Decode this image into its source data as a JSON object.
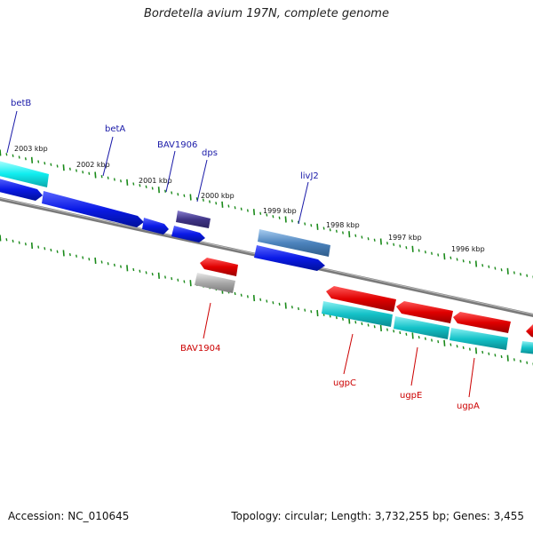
{
  "title": "Bordetella avium 197N, complete genome",
  "footer": {
    "accession": "Accession: NC_010645",
    "summary": "Topology: circular; Length: 3,732,255 bp; Genes: 3,455"
  },
  "colors": {
    "ruler_tick": "#1a8a1a",
    "backbone": "#7a7a7a",
    "label_forward": "#1a1aa8",
    "label_reverse": "#cc0000",
    "red_gene": "#e00000",
    "blue_gene": "#0a1ae6",
    "cyan_gene": "#14c2c8",
    "bright_cyan_gene": "#11eef0",
    "purple_gene": "#3f3486",
    "steel_gene": "#4c83bd",
    "gray_gene": "#a8a8a8"
  },
  "scale_labels": [
    "2003 kbp",
    "2002 kbp",
    "2001 kbp",
    "2000 kbp",
    "1999 kbp",
    "1998 kbp",
    "1997 kbp",
    "1996 kbp"
  ],
  "gene_labels": {
    "betB": "betB",
    "betA": "betA",
    "BAV1906": "BAV1906",
    "dps": "dps",
    "livJ2": "livJ2",
    "BAV1904": "BAV1904",
    "ugpC": "ugpC",
    "ugpE": "ugpE",
    "ugpA": "ugpA"
  }
}
